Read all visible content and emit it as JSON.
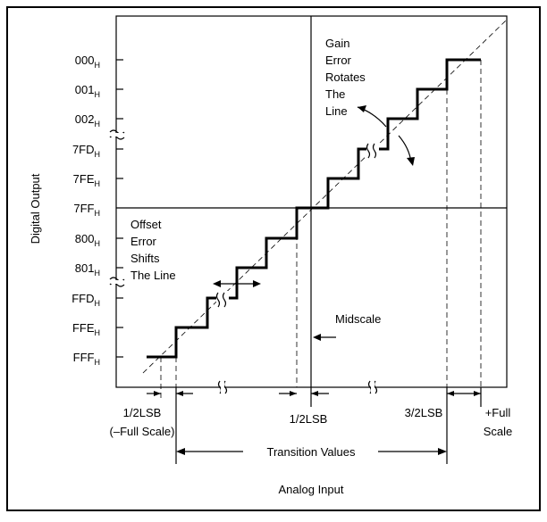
{
  "y_axis": {
    "title": "Digital Output",
    "codes": [
      {
        "code": "000",
        "sub": "H"
      },
      {
        "code": "001",
        "sub": "H"
      },
      {
        "code": "002",
        "sub": "H"
      },
      {
        "code": "7FD",
        "sub": "H"
      },
      {
        "code": "7FE",
        "sub": "H"
      },
      {
        "code": "7FF",
        "sub": "H"
      },
      {
        "code": "800",
        "sub": "H"
      },
      {
        "code": "801",
        "sub": "H"
      },
      {
        "code": "FFD",
        "sub": "H"
      },
      {
        "code": "FFE",
        "sub": "H"
      },
      {
        "code": "FFF",
        "sub": "H"
      }
    ]
  },
  "x_axis": {
    "title": "Analog Input",
    "half_lsb_left": "1/2LSB",
    "full_scale_neg": "(–Full Scale)",
    "half_lsb_mid": "1/2LSB",
    "three_half_lsb": "3/2LSB",
    "full_scale_pos_line1": "+Full",
    "full_scale_pos_line2": "Scale",
    "transition_values": "Transition Values"
  },
  "annotations": {
    "gain_error": [
      "Gain",
      "Error",
      "Rotates",
      "The",
      "Line"
    ],
    "offset_error": [
      "Offset",
      "Error",
      "Shifts",
      "The Line"
    ],
    "midscale": "Midscale"
  },
  "colors": {
    "line": "#000000",
    "background": "#ffffff"
  }
}
